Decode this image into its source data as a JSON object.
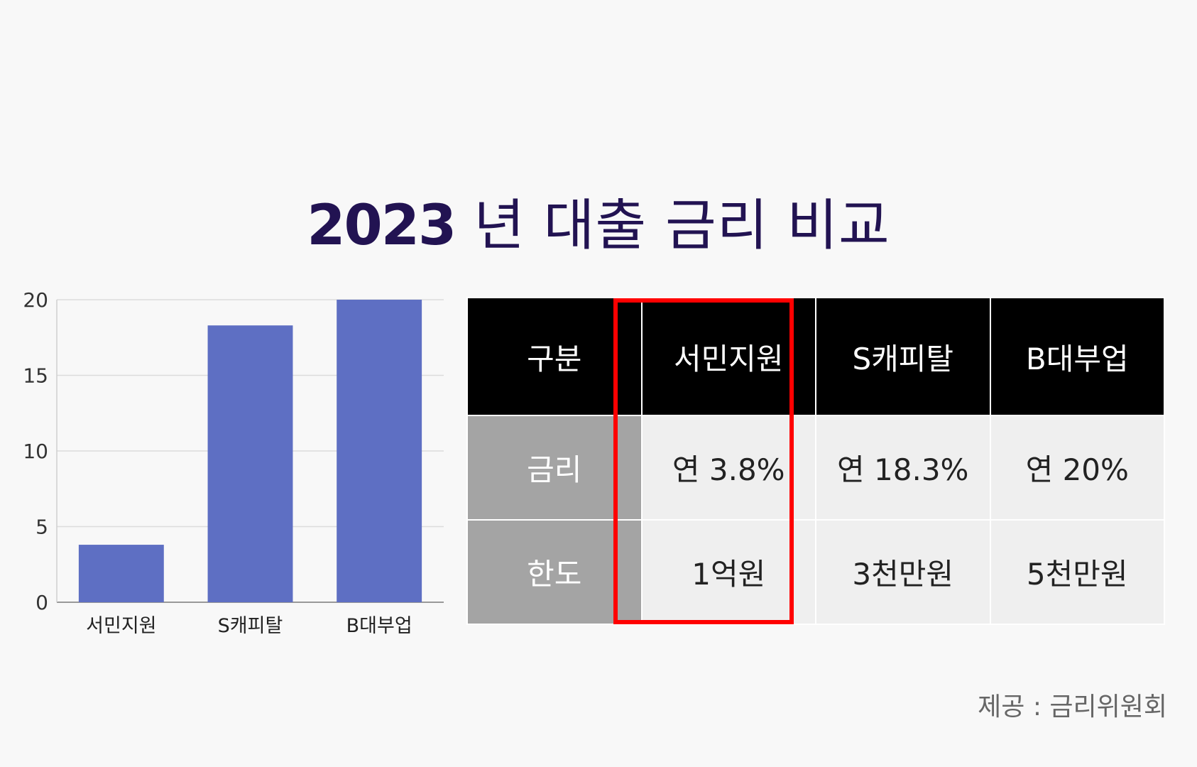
{
  "title": {
    "year": "2023",
    "rest": "년 대출 금리 비교"
  },
  "chart_data": {
    "type": "bar",
    "categories": [
      "서민지원",
      "S캐피탈",
      "B대부업"
    ],
    "values": [
      3.8,
      18.3,
      20
    ],
    "title": "",
    "xlabel": "",
    "ylabel": "",
    "ylim": [
      0,
      20
    ],
    "yticks": [
      "0",
      "5",
      "10",
      "15",
      "20"
    ],
    "grid": true,
    "bar_color": "#5e6fc3"
  },
  "table": {
    "headers": [
      "구분",
      "서민지원",
      "S캐피탈",
      "B대부업"
    ],
    "rows": [
      {
        "label": "금리",
        "values": [
          "연 3.8%",
          "연 18.3%",
          "연 20%"
        ]
      },
      {
        "label": "한도",
        "values": [
          "1억원",
          "3천만원",
          "5천만원"
        ]
      }
    ],
    "highlight_color": "#ff0000"
  },
  "source": "제공 : 금리위원회"
}
